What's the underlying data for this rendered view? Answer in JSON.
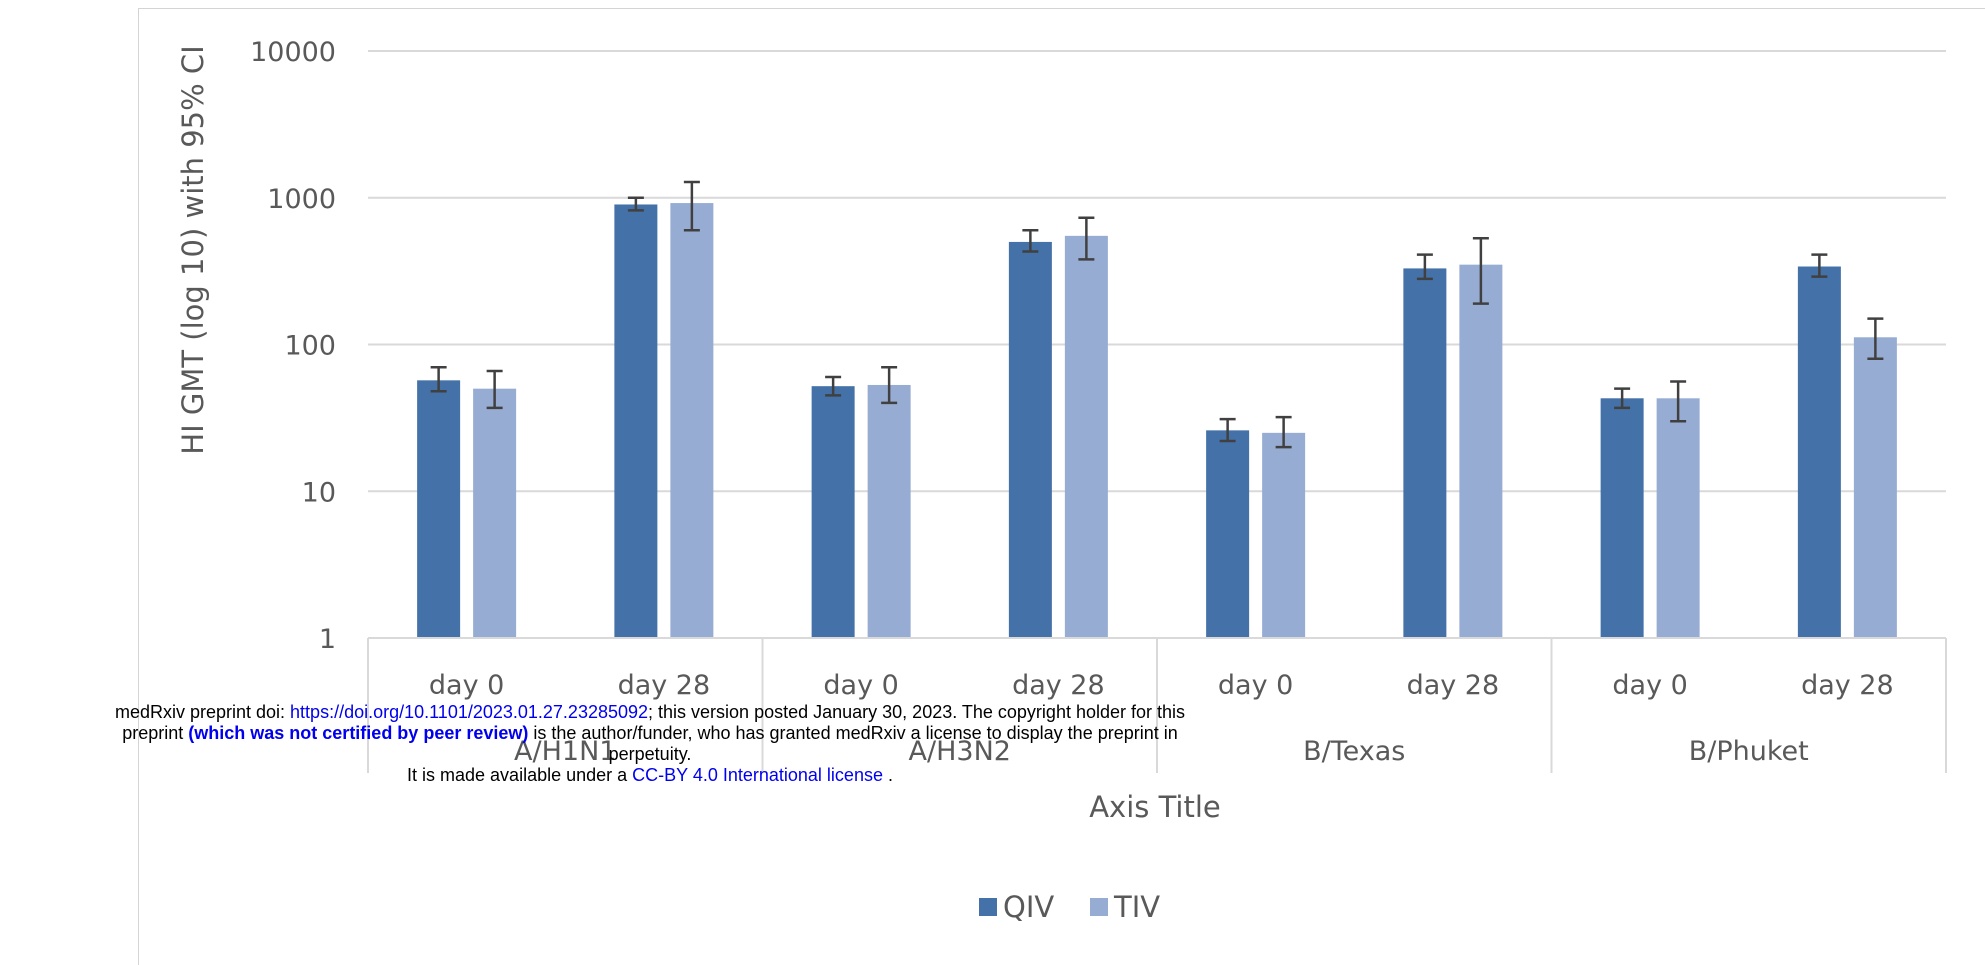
{
  "chart_data": {
    "type": "bar",
    "ylabel": "HI GMT (log 10) with 95% CI",
    "xlabel": "Axis Title",
    "yscale": "log",
    "ylim": [
      1,
      10000
    ],
    "yticks": [
      "1",
      "10",
      "100",
      "1000",
      "10000"
    ],
    "grid": true,
    "legend_position": "bottom",
    "groups": [
      "A/H1N1",
      "A/H3N2",
      "B/Texas",
      "B/Phuket"
    ],
    "timepoints": [
      "day 0",
      "day 28"
    ],
    "series": [
      {
        "name": "QIV",
        "color": "#4472a8",
        "values": [
          57,
          900,
          52,
          500,
          26,
          330,
          43,
          340
        ],
        "ci_low": [
          48,
          820,
          45,
          430,
          22,
          280,
          37,
          290
        ],
        "ci_high": [
          70,
          1000,
          60,
          600,
          31,
          410,
          50,
          410
        ]
      },
      {
        "name": "TIV",
        "color": "#97acd3",
        "values": [
          50,
          920,
          53,
          550,
          25,
          350,
          43,
          112
        ],
        "ci_low": [
          37,
          600,
          40,
          380,
          20,
          190,
          30,
          80
        ],
        "ci_high": [
          66,
          1280,
          70,
          730,
          32,
          530,
          56,
          150
        ]
      }
    ]
  },
  "watermark": {
    "line1_prefix": "medRxiv preprint doi: ",
    "line1_link": "https://doi.org/10.1101/2023.01.27.23285092",
    "line1_suffix": "; this version posted January 30, 2023. The copyright holder for this",
    "line2_prefix": "preprint ",
    "line2_bold": "(which was not certified by peer review)",
    "line2_suffix": " is the author/funder, who has granted medRxiv a license to display the preprint in",
    "line3": "perpetuity.",
    "line4_prefix": "It is made available under a ",
    "line4_link": "CC-BY 4.0 International license",
    "line4_suffix": " ."
  }
}
